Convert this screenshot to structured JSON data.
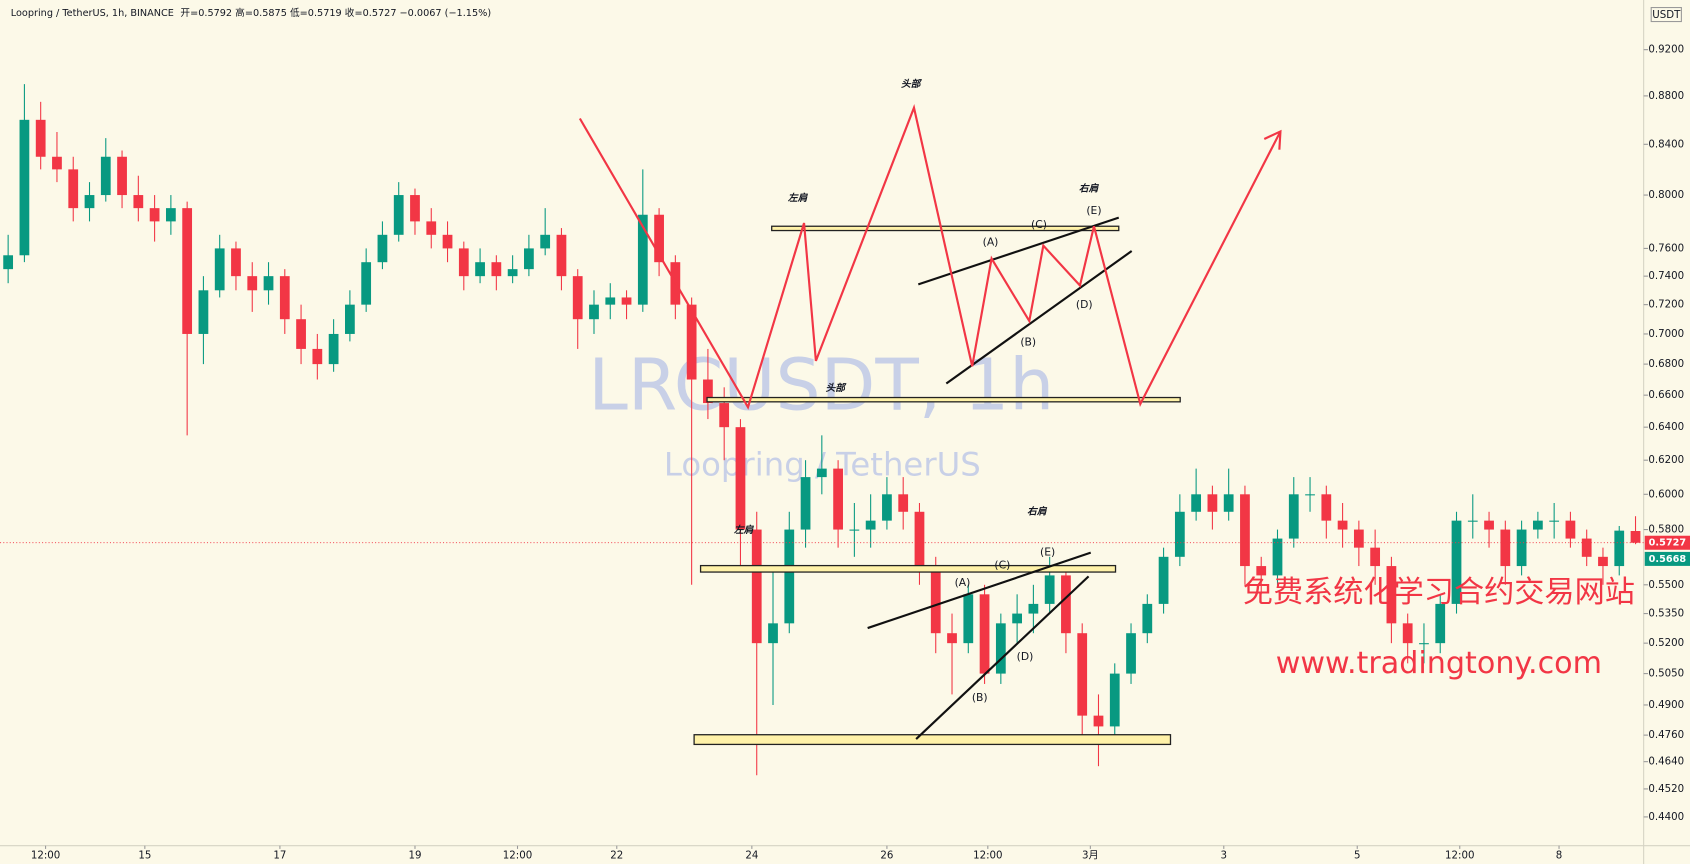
{
  "header": {
    "symbol": "Loopring / TetherUS, 1h, BINANCE",
    "stats": "开=0.5792 高=0.5875 低=0.5719 收=0.5727 −0.0067 (−1.15%)"
  },
  "watermark": {
    "title": "LRCUSDT, 1h",
    "subtitle": "Loopring / TetherUS"
  },
  "promo": {
    "line1": "免费系统化学习合约交易网站",
    "line2": "www.tradingtony.com"
  },
  "annotations": [
    "左肩",
    "头部",
    "右肩",
    "(A)",
    "(B)",
    "(C)",
    "(D)",
    "(E)",
    "头部",
    "左肩",
    "右肩",
    "(A)",
    "(B)",
    "(C)",
    "(D)",
    "(E)"
  ],
  "chart_data": {
    "type": "candlestick",
    "currency": "USDT",
    "log_scale": true,
    "grid": false,
    "up_color": "#089981",
    "down_color": "#f23645",
    "xlim": [
      0,
      101
    ],
    "xticks": [
      {
        "value": 2.8,
        "label": "12:00"
      },
      {
        "value": 8.9,
        "label": "15"
      },
      {
        "value": 17.2,
        "label": "17"
      },
      {
        "value": 25.5,
        "label": "19"
      },
      {
        "value": 31.8,
        "label": "12:00"
      },
      {
        "value": 37.9,
        "label": "22"
      },
      {
        "value": 46.2,
        "label": "24"
      },
      {
        "value": 54.5,
        "label": "26"
      },
      {
        "value": 60.7,
        "label": "12:00"
      },
      {
        "value": 67,
        "label": "3月"
      },
      {
        "value": 75.2,
        "label": "3"
      },
      {
        "value": 83.4,
        "label": "5"
      },
      {
        "value": 89.7,
        "label": "12:00"
      },
      {
        "value": 95.8,
        "label": "8"
      }
    ],
    "ylim": [
      0.428,
      0.965
    ],
    "yticks": [
      {
        "value": 0.92,
        "label": "0.9200"
      },
      {
        "value": 0.88,
        "label": "0.8800"
      },
      {
        "value": 0.84,
        "label": "0.8400"
      },
      {
        "value": 0.8,
        "label": "0.8000"
      },
      {
        "value": 0.76,
        "label": "0.7600"
      },
      {
        "value": 0.74,
        "label": "0.7400"
      },
      {
        "value": 0.72,
        "label": "0.7200"
      },
      {
        "value": 0.7,
        "label": "0.7000"
      },
      {
        "value": 0.68,
        "label": "0.6800"
      },
      {
        "value": 0.66,
        "label": "0.6600"
      },
      {
        "value": 0.64,
        "label": "0.6400"
      },
      {
        "value": 0.62,
        "label": "0.6200"
      },
      {
        "value": 0.6,
        "label": "0.6000"
      },
      {
        "value": 0.58,
        "label": "0.5800"
      },
      {
        "value": 0.55,
        "label": "0.5500"
      },
      {
        "value": 0.535,
        "label": "0.5350"
      },
      {
        "value": 0.52,
        "label": "0.5200"
      },
      {
        "value": 0.505,
        "label": "0.5050"
      },
      {
        "value": 0.49,
        "label": "0.4900"
      },
      {
        "value": 0.476,
        "label": "0.4760"
      },
      {
        "value": 0.464,
        "label": "0.4640"
      },
      {
        "value": 0.452,
        "label": "0.4520"
      },
      {
        "value": 0.44,
        "label": "0.4400"
      }
    ],
    "price_labels": [
      {
        "value": 0.5727,
        "label": "0.5727",
        "color": "#f23645"
      },
      {
        "value": 0.5668,
        "label": "0.5668",
        "color": "#089981"
      }
    ],
    "ohlc": [
      [
        0.745,
        0.77,
        0.735,
        0.755
      ],
      [
        0.755,
        0.89,
        0.75,
        0.86
      ],
      [
        0.86,
        0.875,
        0.82,
        0.83
      ],
      [
        0.83,
        0.85,
        0.81,
        0.82
      ],
      [
        0.82,
        0.83,
        0.78,
        0.79
      ],
      [
        0.79,
        0.81,
        0.78,
        0.8
      ],
      [
        0.8,
        0.845,
        0.795,
        0.83
      ],
      [
        0.83,
        0.835,
        0.79,
        0.8
      ],
      [
        0.8,
        0.815,
        0.78,
        0.79
      ],
      [
        0.79,
        0.8,
        0.765,
        0.78
      ],
      [
        0.78,
        0.8,
        0.77,
        0.79
      ],
      [
        0.79,
        0.795,
        0.635,
        0.7
      ],
      [
        0.7,
        0.74,
        0.68,
        0.73
      ],
      [
        0.73,
        0.77,
        0.725,
        0.76
      ],
      [
        0.76,
        0.765,
        0.73,
        0.74
      ],
      [
        0.74,
        0.75,
        0.715,
        0.73
      ],
      [
        0.73,
        0.75,
        0.72,
        0.74
      ],
      [
        0.74,
        0.745,
        0.7,
        0.71
      ],
      [
        0.71,
        0.72,
        0.68,
        0.69
      ],
      [
        0.69,
        0.7,
        0.67,
        0.68
      ],
      [
        0.68,
        0.71,
        0.675,
        0.7
      ],
      [
        0.7,
        0.73,
        0.695,
        0.72
      ],
      [
        0.72,
        0.76,
        0.715,
        0.75
      ],
      [
        0.75,
        0.78,
        0.745,
        0.77
      ],
      [
        0.77,
        0.81,
        0.765,
        0.8
      ],
      [
        0.8,
        0.805,
        0.77,
        0.78
      ],
      [
        0.78,
        0.79,
        0.76,
        0.77
      ],
      [
        0.77,
        0.78,
        0.75,
        0.76
      ],
      [
        0.76,
        0.765,
        0.73,
        0.74
      ],
      [
        0.74,
        0.76,
        0.735,
        0.75
      ],
      [
        0.75,
        0.755,
        0.73,
        0.74
      ],
      [
        0.74,
        0.755,
        0.735,
        0.745
      ],
      [
        0.745,
        0.77,
        0.74,
        0.76
      ],
      [
        0.76,
        0.79,
        0.755,
        0.77
      ],
      [
        0.77,
        0.775,
        0.73,
        0.74
      ],
      [
        0.74,
        0.745,
        0.69,
        0.71
      ],
      [
        0.71,
        0.73,
        0.7,
        0.72
      ],
      [
        0.72,
        0.735,
        0.71,
        0.725
      ],
      [
        0.725,
        0.73,
        0.71,
        0.72
      ],
      [
        0.72,
        0.82,
        0.715,
        0.785
      ],
      [
        0.785,
        0.79,
        0.74,
        0.75
      ],
      [
        0.75,
        0.755,
        0.71,
        0.72
      ],
      [
        0.72,
        0.725,
        0.55,
        0.67
      ],
      [
        0.67,
        0.69,
        0.645,
        0.655
      ],
      [
        0.655,
        0.665,
        0.62,
        0.64
      ],
      [
        0.64,
        0.645,
        0.56,
        0.58
      ],
      [
        0.58,
        0.59,
        0.458,
        0.52
      ],
      [
        0.52,
        0.56,
        0.49,
        0.53
      ],
      [
        0.53,
        0.59,
        0.525,
        0.58
      ],
      [
        0.58,
        0.62,
        0.57,
        0.61
      ],
      [
        0.61,
        0.635,
        0.6,
        0.615
      ],
      [
        0.615,
        0.62,
        0.57,
        0.58
      ],
      [
        0.58,
        0.595,
        0.565,
        0.58
      ],
      [
        0.58,
        0.6,
        0.57,
        0.585
      ],
      [
        0.585,
        0.61,
        0.58,
        0.6
      ],
      [
        0.6,
        0.61,
        0.58,
        0.59
      ],
      [
        0.59,
        0.595,
        0.55,
        0.56
      ],
      [
        0.56,
        0.565,
        0.515,
        0.525
      ],
      [
        0.525,
        0.535,
        0.495,
        0.52
      ],
      [
        0.52,
        0.55,
        0.515,
        0.545
      ],
      [
        0.545,
        0.55,
        0.5,
        0.505
      ],
      [
        0.505,
        0.535,
        0.5,
        0.53
      ],
      [
        0.53,
        0.545,
        0.52,
        0.535
      ],
      [
        0.535,
        0.55,
        0.525,
        0.54
      ],
      [
        0.54,
        0.565,
        0.535,
        0.555
      ],
      [
        0.555,
        0.56,
        0.515,
        0.525
      ],
      [
        0.525,
        0.53,
        0.475,
        0.485
      ],
      [
        0.485,
        0.495,
        0.462,
        0.48
      ],
      [
        0.48,
        0.51,
        0.475,
        0.505
      ],
      [
        0.505,
        0.53,
        0.5,
        0.525
      ],
      [
        0.525,
        0.545,
        0.52,
        0.54
      ],
      [
        0.54,
        0.57,
        0.535,
        0.565
      ],
      [
        0.565,
        0.6,
        0.56,
        0.59
      ],
      [
        0.59,
        0.615,
        0.585,
        0.6
      ],
      [
        0.6,
        0.605,
        0.58,
        0.59
      ],
      [
        0.59,
        0.615,
        0.585,
        0.6
      ],
      [
        0.6,
        0.605,
        0.55,
        0.56
      ],
      [
        0.56,
        0.565,
        0.545,
        0.555
      ],
      [
        0.555,
        0.58,
        0.55,
        0.575
      ],
      [
        0.575,
        0.61,
        0.57,
        0.6
      ],
      [
        0.6,
        0.61,
        0.59,
        0.6
      ],
      [
        0.6,
        0.605,
        0.575,
        0.585
      ],
      [
        0.585,
        0.595,
        0.57,
        0.58
      ],
      [
        0.58,
        0.585,
        0.56,
        0.57
      ],
      [
        0.57,
        0.58,
        0.55,
        0.56
      ],
      [
        0.56,
        0.565,
        0.52,
        0.53
      ],
      [
        0.53,
        0.535,
        0.51,
        0.52
      ],
      [
        0.52,
        0.53,
        0.51,
        0.52
      ],
      [
        0.52,
        0.545,
        0.515,
        0.54
      ],
      [
        0.54,
        0.59,
        0.535,
        0.585
      ],
      [
        0.585,
        0.6,
        0.575,
        0.585
      ],
      [
        0.585,
        0.59,
        0.57,
        0.58
      ],
      [
        0.58,
        0.585,
        0.55,
        0.56
      ],
      [
        0.56,
        0.585,
        0.555,
        0.58
      ],
      [
        0.58,
        0.59,
        0.575,
        0.585
      ],
      [
        0.585,
        0.595,
        0.575,
        0.585
      ],
      [
        0.585,
        0.59,
        0.57,
        0.575
      ],
      [
        0.575,
        0.58,
        0.56,
        0.565
      ],
      [
        0.565,
        0.57,
        0.55,
        0.56
      ],
      [
        0.56,
        0.582,
        0.555,
        0.5794
      ],
      [
        0.5792,
        0.5875,
        0.5719,
        0.5727
      ]
    ]
  }
}
